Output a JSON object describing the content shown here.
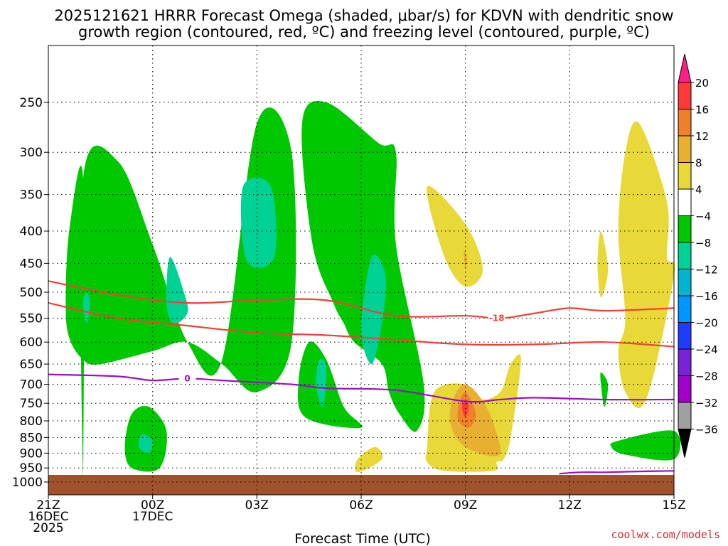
{
  "title": {
    "line1": "2025121621 HRRR Forecast Omega (shaded, μbar/s) for KDVN with dendritic snow",
    "line2": "growth region (contoured, red, ºC) and freezing level (contoured, purple, ºC)"
  },
  "x_axis": {
    "label": "Forecast Time (UTC)",
    "ticks": [
      {
        "hour": 0,
        "lines": [
          "21Z",
          "16DEC",
          "2025"
        ]
      },
      {
        "hour": 3,
        "lines": [
          "00Z",
          "17DEC"
        ]
      },
      {
        "hour": 6,
        "lines": [
          "03Z"
        ]
      },
      {
        "hour": 9,
        "lines": [
          "06Z"
        ]
      },
      {
        "hour": 12,
        "lines": [
          "09Z"
        ]
      },
      {
        "hour": 15,
        "lines": [
          "12Z"
        ]
      },
      {
        "hour": 18,
        "lines": [
          "15Z"
        ]
      }
    ]
  },
  "credit": "coolwx.com/models",
  "chart_data": {
    "type": "heatmap",
    "x_unit": "forecast hour",
    "xlim": [
      0,
      18
    ],
    "y_unit": "mb",
    "ylim": [
      1000,
      200
    ],
    "y_ticks": [
      250,
      300,
      350,
      400,
      450,
      500,
      550,
      600,
      650,
      700,
      750,
      800,
      850,
      900,
      950,
      1000
    ],
    "grid": true,
    "colorbar": {
      "labels": [
        "20",
        "16",
        "12",
        "8",
        "4",
        "−4",
        "−8",
        "−12",
        "−16",
        "−20",
        "−24",
        "−28",
        "−32",
        "−36"
      ],
      "colors": [
        "#ff1e86",
        "#ff3838",
        "#f0802a",
        "#e8b030",
        "#e8d838",
        "#ffffff",
        "#00c800",
        "#00d296",
        "#00b4d2",
        "#0096ff",
        "#1e3cff",
        "#7a22d8",
        "#a000c8",
        "#a0a0a0",
        "#000000"
      ]
    },
    "omega_regions": [
      {
        "class": -8,
        "color": "#00c800",
        "pts": [
          [
            1,
            1000
          ],
          [
            1,
            330
          ],
          [
            2,
            310
          ],
          [
            3,
            420
          ],
          [
            4,
            600
          ],
          [
            5,
            640
          ],
          [
            6,
            270
          ],
          [
            7,
            300
          ],
          [
            7,
            600
          ],
          [
            6,
            720
          ],
          [
            5,
            650
          ],
          [
            4,
            600
          ],
          [
            3,
            620
          ],
          [
            1.5,
            650
          ],
          [
            1,
            640
          ],
          [
            0.6,
            590
          ],
          [
            0.5,
            520
          ],
          [
            0.6,
            400
          ],
          [
            1,
            330
          ]
        ]
      },
      {
        "class": -8,
        "color": "#00c800",
        "pts": [
          [
            7.5,
            600
          ],
          [
            8,
            640
          ],
          [
            8.5,
            760
          ],
          [
            9,
            820
          ],
          [
            7.4,
            790
          ],
          [
            7.2,
            690
          ],
          [
            7.5,
            600
          ]
        ]
      },
      {
        "class": -8,
        "color": "#00c800",
        "pts": [
          [
            7.3,
            270
          ],
          [
            8,
            250
          ],
          [
            9.5,
            290
          ],
          [
            10,
            300
          ],
          [
            10,
            420
          ],
          [
            10.8,
            700
          ],
          [
            10.6,
            830
          ],
          [
            10.1,
            780
          ],
          [
            9.8,
            720
          ],
          [
            9.6,
            650
          ],
          [
            8.8,
            600
          ],
          [
            8.5,
            560
          ],
          [
            8.2,
            520
          ],
          [
            7.6,
            420
          ],
          [
            7.3,
            270
          ]
        ]
      },
      {
        "class": -8,
        "color": "#00c800",
        "pts": [
          [
            2.4,
            780
          ],
          [
            2.9,
            760
          ],
          [
            3.4,
            830
          ],
          [
            3.2,
            950
          ],
          [
            2.4,
            950
          ],
          [
            2.2,
            880
          ],
          [
            2.4,
            780
          ]
        ]
      },
      {
        "class": -8,
        "color": "#00c800",
        "pts": [
          [
            15.9,
            670
          ],
          [
            16.1,
            700
          ],
          [
            16.0,
            760
          ],
          [
            15.9,
            700
          ],
          [
            15.9,
            670
          ]
        ]
      },
      {
        "class": -8,
        "color": "#00c800",
        "pts": [
          [
            16.4,
            860
          ],
          [
            18,
            830
          ],
          [
            18,
            920
          ],
          [
            16.6,
            905
          ],
          [
            16.2,
            880
          ],
          [
            16.4,
            860
          ]
        ]
      },
      {
        "class": -12,
        "color": "#00d296",
        "pts": [
          [
            5.6,
            340
          ],
          [
            6.4,
            340
          ],
          [
            6.5,
            440
          ],
          [
            5.7,
            445
          ],
          [
            5.6,
            340
          ]
        ]
      },
      {
        "class": -12,
        "color": "#00d296",
        "pts": [
          [
            3.5,
            440
          ],
          [
            3.9,
            500
          ],
          [
            4.0,
            540
          ],
          [
            3.6,
            560
          ],
          [
            3.4,
            520
          ],
          [
            3.5,
            440
          ]
        ]
      },
      {
        "class": -12,
        "color": "#00d296",
        "pts": [
          [
            1.0,
            520
          ],
          [
            1.1,
            500
          ],
          [
            1.2,
            520
          ],
          [
            1.1,
            560
          ],
          [
            1.0,
            520
          ]
        ]
      },
      {
        "class": -12,
        "color": "#00d296",
        "pts": [
          [
            9.3,
            440
          ],
          [
            9.7,
            470
          ],
          [
            9.6,
            560
          ],
          [
            9.3,
            650
          ],
          [
            9.0,
            570
          ],
          [
            9.3,
            440
          ]
        ]
      },
      {
        "class": -12,
        "color": "#00d296",
        "pts": [
          [
            7.8,
            640
          ],
          [
            8.0,
            660
          ],
          [
            7.9,
            760
          ],
          [
            7.7,
            700
          ],
          [
            7.8,
            640
          ]
        ]
      },
      {
        "class": -12,
        "color": "#00d296",
        "pts": [
          [
            2.7,
            840
          ],
          [
            3.0,
            860
          ],
          [
            2.9,
            900
          ],
          [
            2.6,
            880
          ],
          [
            2.7,
            840
          ]
        ]
      },
      {
        "class": 4,
        "color": "#e8d838",
        "pts": [
          [
            10.9,
            340
          ],
          [
            12.0,
            390
          ],
          [
            12.5,
            460
          ],
          [
            12.0,
            490
          ],
          [
            11.4,
            440
          ],
          [
            10.9,
            340
          ]
        ]
      },
      {
        "class": 4,
        "color": "#e8d838",
        "pts": [
          [
            11.1,
            720
          ],
          [
            12.0,
            700
          ],
          [
            12.4,
            740
          ],
          [
            13.0,
            720
          ],
          [
            13.3,
            650
          ],
          [
            13.6,
            640
          ],
          [
            13.3,
            850
          ],
          [
            13.1,
            920
          ],
          [
            12.9,
            930
          ],
          [
            12.8,
            960
          ],
          [
            11.4,
            960
          ],
          [
            10.9,
            930
          ],
          [
            10.9,
            880
          ],
          [
            11.1,
            720
          ]
        ]
      },
      {
        "class": 4,
        "color": "#e8d838",
        "pts": [
          [
            8.9,
            920
          ],
          [
            9.4,
            880
          ],
          [
            9.6,
            920
          ],
          [
            8.9,
            965
          ],
          [
            8.9,
            920
          ]
        ]
      },
      {
        "class": 4,
        "color": "#e8d838",
        "pts": [
          [
            15.9,
            400
          ],
          [
            16.1,
            460
          ],
          [
            15.9,
            510
          ],
          [
            15.8,
            450
          ],
          [
            15.9,
            400
          ]
        ]
      },
      {
        "class": 4,
        "color": "#e8d838",
        "pts": [
          [
            16.6,
            300
          ],
          [
            17,
            270
          ],
          [
            17.8,
            360
          ],
          [
            17.8,
            440
          ],
          [
            18,
            470
          ],
          [
            17.2,
            740
          ],
          [
            16.6,
            720
          ],
          [
            16.4,
            620
          ],
          [
            16.6,
            550
          ],
          [
            16.4,
            400
          ],
          [
            16.6,
            300
          ]
        ]
      },
      {
        "class": 8,
        "color": "#e8b030",
        "pts": [
          [
            11.6,
            750
          ],
          [
            12.0,
            700
          ],
          [
            12.6,
            760
          ],
          [
            13.0,
            880
          ],
          [
            12.8,
            910
          ],
          [
            12.0,
            880
          ],
          [
            11.6,
            820
          ],
          [
            11.6,
            750
          ]
        ]
      },
      {
        "class": 12,
        "color": "#f0802a",
        "pts": [
          [
            11.8,
            760
          ],
          [
            12.0,
            720
          ],
          [
            12.3,
            780
          ],
          [
            12.1,
            820
          ],
          [
            11.8,
            800
          ],
          [
            11.8,
            760
          ]
        ]
      },
      {
        "class": 16,
        "color": "#ff3838",
        "pts": [
          [
            11.9,
            760
          ],
          [
            12.0,
            745
          ],
          [
            12.1,
            760
          ],
          [
            12.0,
            790
          ],
          [
            11.9,
            760
          ]
        ]
      },
      {
        "class": 8,
        "color": "#e8b030",
        "pts": [
          [
            11.95,
            430
          ],
          [
            12.05,
            440
          ],
          [
            12.0,
            460
          ],
          [
            11.95,
            430
          ]
        ]
      }
    ],
    "dgz_contours": [
      {
        "label": "-18",
        "color": "#f04035",
        "label_hour": 12.9,
        "pts": [
          [
            0,
            480
          ],
          [
            2,
            505
          ],
          [
            4,
            520
          ],
          [
            6,
            515
          ],
          [
            8,
            515
          ],
          [
            10,
            545
          ],
          [
            12,
            545
          ],
          [
            13,
            550
          ],
          [
            14,
            540
          ],
          [
            15,
            530
          ],
          [
            16,
            535
          ],
          [
            18,
            530
          ]
        ]
      },
      {
        "label": "",
        "color": "#f04035",
        "label_hour": null,
        "pts": [
          [
            0,
            520
          ],
          [
            2,
            550
          ],
          [
            4,
            565
          ],
          [
            6,
            580
          ],
          [
            8,
            585
          ],
          [
            10,
            595
          ],
          [
            12,
            605
          ],
          [
            14,
            605
          ],
          [
            16,
            600
          ],
          [
            18,
            610
          ]
        ]
      }
    ],
    "freezing_level": [
      {
        "label": "0",
        "color": "#9c0fc4",
        "label_hour": 4,
        "pts": [
          [
            0,
            675
          ],
          [
            2,
            680
          ],
          [
            3,
            690
          ],
          [
            4,
            685
          ],
          [
            5,
            690
          ],
          [
            7,
            700
          ],
          [
            8,
            710
          ],
          [
            10,
            715
          ],
          [
            12,
            745
          ],
          [
            13,
            740
          ],
          [
            14,
            735
          ],
          [
            16,
            740
          ],
          [
            18,
            740
          ]
        ]
      },
      {
        "label": "",
        "color": "#9c0fc4",
        "label_hour": null,
        "pts": [
          [
            14.7,
            970
          ],
          [
            15.3,
            965
          ],
          [
            16,
            965
          ],
          [
            17,
            962
          ],
          [
            18,
            960
          ]
        ]
      }
    ],
    "terrain": {
      "color": "#a0522d",
      "top_mb": 980
    }
  }
}
